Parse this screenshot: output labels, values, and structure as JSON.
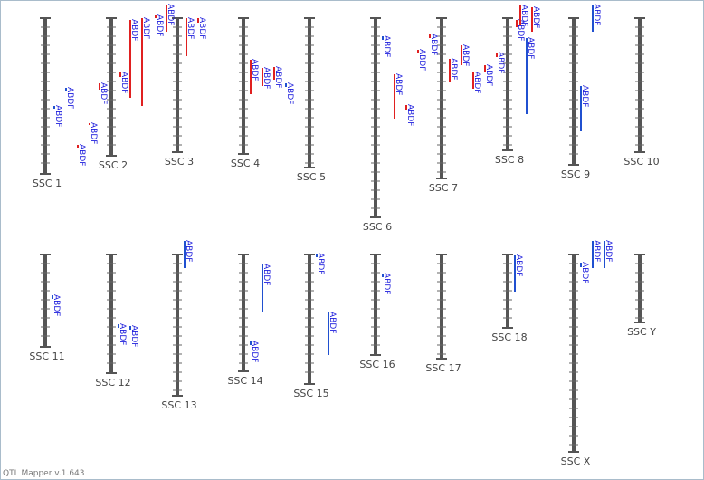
{
  "chromosomes": [
    {
      "label": "SSC 1",
      "qtls": [
        {
          "label": "ABDF"
        },
        {
          "label": "ABDF"
        },
        {
          "label": "ABDF"
        },
        {
          "label": "ABDF"
        }
      ]
    },
    {
      "label": "SSC 2",
      "qtls": [
        {
          "label": "ABDF"
        },
        {
          "label": "ABDF"
        },
        {
          "label": "ABDF"
        },
        {
          "label": "ABDF"
        }
      ]
    },
    {
      "label": "SSC 3",
      "qtls": [
        {
          "label": "ABDF"
        },
        {
          "label": "ABDF"
        },
        {
          "label": "ABDF"
        },
        {
          "label": "ABDF"
        }
      ]
    },
    {
      "label": "SSC 4",
      "qtls": [
        {
          "label": "ABDF"
        },
        {
          "label": "ABDF"
        },
        {
          "label": "ABDF"
        },
        {
          "label": "ABDF"
        }
      ]
    },
    {
      "label": "SSC 5",
      "qtls": []
    },
    {
      "label": "SSC 6",
      "qtls": [
        {
          "label": "ABDF"
        },
        {
          "label": "ABDF"
        },
        {
          "label": "ABDF"
        }
      ]
    },
    {
      "label": "SSC 7",
      "qtls": [
        {
          "label": "ABDF"
        },
        {
          "label": "ABDF"
        },
        {
          "label": "ABDF"
        },
        {
          "label": "ABDF"
        },
        {
          "label": "ABDF"
        },
        {
          "label": "ABDF"
        },
        {
          "label": "ABDF"
        }
      ]
    },
    {
      "label": "SSC 8",
      "qtls": [
        {
          "label": "ABDF"
        },
        {
          "label": "ABDF"
        },
        {
          "label": "ABDF"
        },
        {
          "label": "ABDF"
        }
      ]
    },
    {
      "label": "SSC 9",
      "qtls": [
        {
          "label": "ABDF"
        },
        {
          "label": "ABDF"
        }
      ]
    },
    {
      "label": "SSC 10",
      "qtls": []
    },
    {
      "label": "SSC 11",
      "qtls": [
        {
          "label": "ABDF"
        }
      ]
    },
    {
      "label": "SSC 12",
      "qtls": [
        {
          "label": "ABDF"
        },
        {
          "label": "ABDF"
        }
      ]
    },
    {
      "label": "SSC 13",
      "qtls": [
        {
          "label": "ABDF"
        }
      ]
    },
    {
      "label": "SSC 14",
      "qtls": [
        {
          "label": "ABDF"
        },
        {
          "label": "ABDF"
        }
      ]
    },
    {
      "label": "SSC 15",
      "qtls": [
        {
          "label": "ABDF"
        },
        {
          "label": "ABDF"
        }
      ]
    },
    {
      "label": "SSC 16",
      "qtls": [
        {
          "label": "ABDF"
        }
      ]
    },
    {
      "label": "SSC 17",
      "qtls": []
    },
    {
      "label": "SSC 18",
      "qtls": [
        {
          "label": "ABDF"
        }
      ]
    },
    {
      "label": "SSC X",
      "qtls": [
        {
          "label": "ABDF"
        },
        {
          "label": "ABDF"
        },
        {
          "label": "ABDF"
        }
      ]
    },
    {
      "label": "SSC Y",
      "qtls": []
    }
  ],
  "footer": "QTL Mapper v.1.643"
}
